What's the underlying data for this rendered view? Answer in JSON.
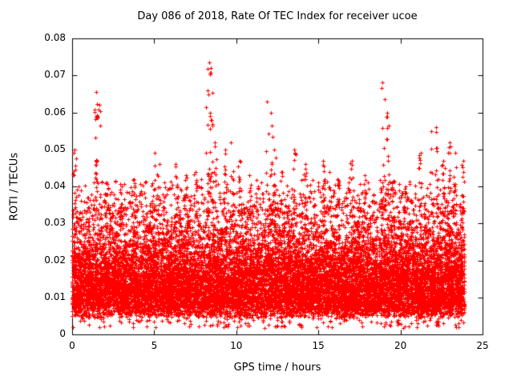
{
  "page": {
    "background": "#ffffff",
    "foreground": "#000000"
  },
  "chart_data": {
    "type": "scatter",
    "title": "Day 086 of 2018, Rate Of TEC Index for receiver ucoe",
    "xlabel": "GPS time / hours",
    "ylabel": "ROTI / TECUs",
    "xlim": [
      0,
      25
    ],
    "ylim": [
      0,
      0.08
    ],
    "xticks": [
      0,
      5,
      10,
      15,
      20,
      25
    ],
    "xtick_labels": [
      "0",
      "5",
      "10",
      "15",
      "20",
      "25"
    ],
    "yticks": [
      0,
      0.01,
      0.02,
      0.03,
      0.04,
      0.05,
      0.06,
      0.07,
      0.08
    ],
    "ytick_labels": [
      "0",
      "0.01",
      "0.02",
      "0.03",
      "0.04",
      "0.05",
      "0.06",
      "0.07",
      "0.08"
    ],
    "grid": false,
    "legend": "none",
    "marker": "plus",
    "marker_color": "#ff0000",
    "marker_size_px": 5,
    "series_summary": {
      "description": "Dense ROTI scatter for one day; thousands of 30-s epochs from all satellites",
      "x_data_range": [
        0,
        23.9
      ],
      "dense_band": [
        0.004,
        0.035
      ],
      "typical_value": 0.016,
      "max_value": 0.0735,
      "max_value_at_hour": 8.4,
      "n_points_approx": 15000
    },
    "peaks": [
      [
        0.15,
        0.05
      ],
      [
        1.45,
        0.0655
      ],
      [
        1.65,
        0.062
      ],
      [
        1.5,
        0.047
      ],
      [
        2.1,
        0.041
      ],
      [
        3.0,
        0.04
      ],
      [
        3.8,
        0.042
      ],
      [
        5.0,
        0.049
      ],
      [
        5.3,
        0.046
      ],
      [
        5.6,
        0.041
      ],
      [
        6.3,
        0.046
      ],
      [
        6.9,
        0.043
      ],
      [
        7.5,
        0.044
      ],
      [
        8.35,
        0.0735
      ],
      [
        8.45,
        0.072
      ],
      [
        8.25,
        0.066
      ],
      [
        8.5,
        0.058
      ],
      [
        8.7,
        0.052
      ],
      [
        9.3,
        0.05
      ],
      [
        9.7,
        0.052
      ],
      [
        10.2,
        0.047
      ],
      [
        10.8,
        0.043
      ],
      [
        11.9,
        0.063
      ],
      [
        12.1,
        0.06
      ],
      [
        12.3,
        0.05
      ],
      [
        12.8,
        0.044
      ],
      [
        13.5,
        0.05
      ],
      [
        14.2,
        0.046
      ],
      [
        15.3,
        0.047
      ],
      [
        15.7,
        0.044
      ],
      [
        16.2,
        0.042
      ],
      [
        17.0,
        0.047
      ],
      [
        17.8,
        0.043
      ],
      [
        18.9,
        0.068
      ],
      [
        19.0,
        0.0635
      ],
      [
        19.2,
        0.06
      ],
      [
        19.5,
        0.041
      ],
      [
        20.3,
        0.04
      ],
      [
        21.2,
        0.049
      ],
      [
        21.9,
        0.055
      ],
      [
        22.2,
        0.056
      ],
      [
        22.6,
        0.047
      ],
      [
        23.0,
        0.052
      ],
      [
        23.3,
        0.049
      ],
      [
        23.8,
        0.047
      ]
    ],
    "synthesis": {
      "seed": 20180086,
      "n_background": 15000,
      "y_floor": 0.0045,
      "y_scale": 0.006,
      "fringe_cap": 0.042,
      "low_outlier_rate": 0.015
    }
  }
}
